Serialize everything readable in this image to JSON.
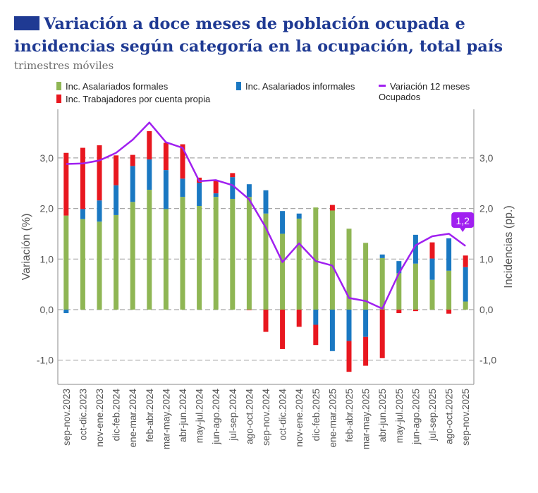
{
  "header": {
    "title": "Variación a doce meses de población ocupada e incidencias según categoría en la ocupación, total país",
    "subtitle": "trimestres móviles"
  },
  "legend": [
    {
      "label": "Inc. Asalariados formales",
      "color": "#8fb654"
    },
    {
      "label": "Inc. Asalariados informales",
      "color": "#1a78c2"
    },
    {
      "label": "Inc. Trabajadores por cuenta propia",
      "color": "#e8171f"
    },
    {
      "label": "Variación 12 meses Ocupados",
      "color": "#a020f0"
    }
  ],
  "chart_data": {
    "type": "bar",
    "stacked": true,
    "ylabel": "Variación (%)",
    "y2label": "Incidencias (pp.)",
    "ylim": [
      -1.45,
      3.9
    ],
    "yticks": [
      "3,0",
      "2,0",
      "1,0",
      "0,0",
      "-1,0"
    ],
    "ytick_values": [
      3,
      2,
      1,
      0,
      -1
    ],
    "grid": "dashed horizontal",
    "categories": [
      "sep-nov.2023",
      "oct-dic.2023",
      "nov-ene.2023",
      "dic-feb.2024",
      "ene-mar.2024",
      "feb-abr.2024",
      "mar-may.2024",
      "abr-jun.2024",
      "may-jul.2024",
      "jun-ago.2024",
      "jul-sep.2024",
      "ago-oct.2024",
      "sep-nov.2024",
      "oct-dic.2024",
      "nov-ene.2024",
      "dic-feb.2025",
      "ene-mar.2025",
      "feb-abr.2025",
      "mar-may.2025",
      "abr-jun.2025",
      "may-jul.2025",
      "jun-ago.2025",
      "jul-sep.2025",
      "ago-oct.2025",
      "sep-nov.2025"
    ],
    "series": [
      {
        "name": "Inc. Asalariados formales",
        "color": "#8fb654",
        "values": [
          1.86,
          1.79,
          1.74,
          1.87,
          2.13,
          2.37,
          1.99,
          2.23,
          2.05,
          2.23,
          2.19,
          2.23,
          1.9,
          1.5,
          1.8,
          2.02,
          1.96,
          1.6,
          1.32,
          1.02,
          0.72,
          0.91,
          0.59,
          0.77,
          0.16
        ]
      },
      {
        "name": "Inc. Asalariados informales",
        "color": "#1a78c2",
        "values": [
          -0.07,
          0.2,
          0.42,
          0.59,
          0.71,
          0.6,
          0.77,
          0.36,
          0.46,
          0.07,
          0.43,
          0.25,
          0.46,
          0.45,
          0.1,
          -0.3,
          -0.82,
          -0.62,
          -0.54,
          0.07,
          0.24,
          0.57,
          0.42,
          0.64,
          0.68
        ]
      },
      {
        "name": "Inc. Trabajadores por cuenta propia",
        "color": "#e8171f",
        "values": [
          1.24,
          1.21,
          1.09,
          0.59,
          0.22,
          0.56,
          0.54,
          0.68,
          0.1,
          0.26,
          0.08,
          -0.01,
          -0.44,
          -0.78,
          -0.34,
          -0.4,
          0.11,
          -0.61,
          -0.57,
          -0.96,
          -0.07,
          -0.03,
          0.32,
          -0.08,
          0.23
        ]
      },
      {
        "name": "Variación 12 meses Ocupados",
        "type": "line",
        "color": "#a020f0",
        "values": [
          2.88,
          2.89,
          2.95,
          3.1,
          3.36,
          3.7,
          3.31,
          3.2,
          2.54,
          2.56,
          2.46,
          2.18,
          1.62,
          0.94,
          1.31,
          0.96,
          0.87,
          0.23,
          0.17,
          0.02,
          0.72,
          1.27,
          1.45,
          1.5,
          1.26
        ]
      }
    ],
    "annotation": "1,2"
  }
}
